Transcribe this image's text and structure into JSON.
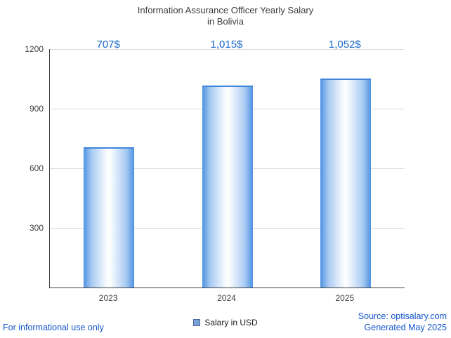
{
  "chart_data": {
    "type": "bar",
    "title": "Information Assurance Officer Yearly Salary",
    "subtitle": "in Bolivia",
    "categories": [
      "2023",
      "2024",
      "2025"
    ],
    "values": [
      707,
      1015,
      1052
    ],
    "value_labels": [
      "707$",
      "1,015$",
      "1,052$"
    ],
    "ylim": [
      0,
      1200
    ],
    "yticks": [
      300,
      600,
      900,
      1200
    ],
    "xlabel": "",
    "ylabel": "",
    "grid": true,
    "legend": "Salary in USD",
    "legend_position": "bottom-center",
    "bar_color_edge": "#4e92e2",
    "bar_color_center": "#ffffff",
    "value_label_color": "#1766c8"
  },
  "footer": {
    "disclaimer": "For informational use only",
    "source": "Source: optisalary.com",
    "generated": "Generated May 2025"
  },
  "colors": {
    "accent_blue": "#1766c8",
    "link_blue": "#1155cc",
    "title_gray": "#3c3c3c",
    "axis_gray": "#424242",
    "gridline_gray": "#dadada"
  }
}
